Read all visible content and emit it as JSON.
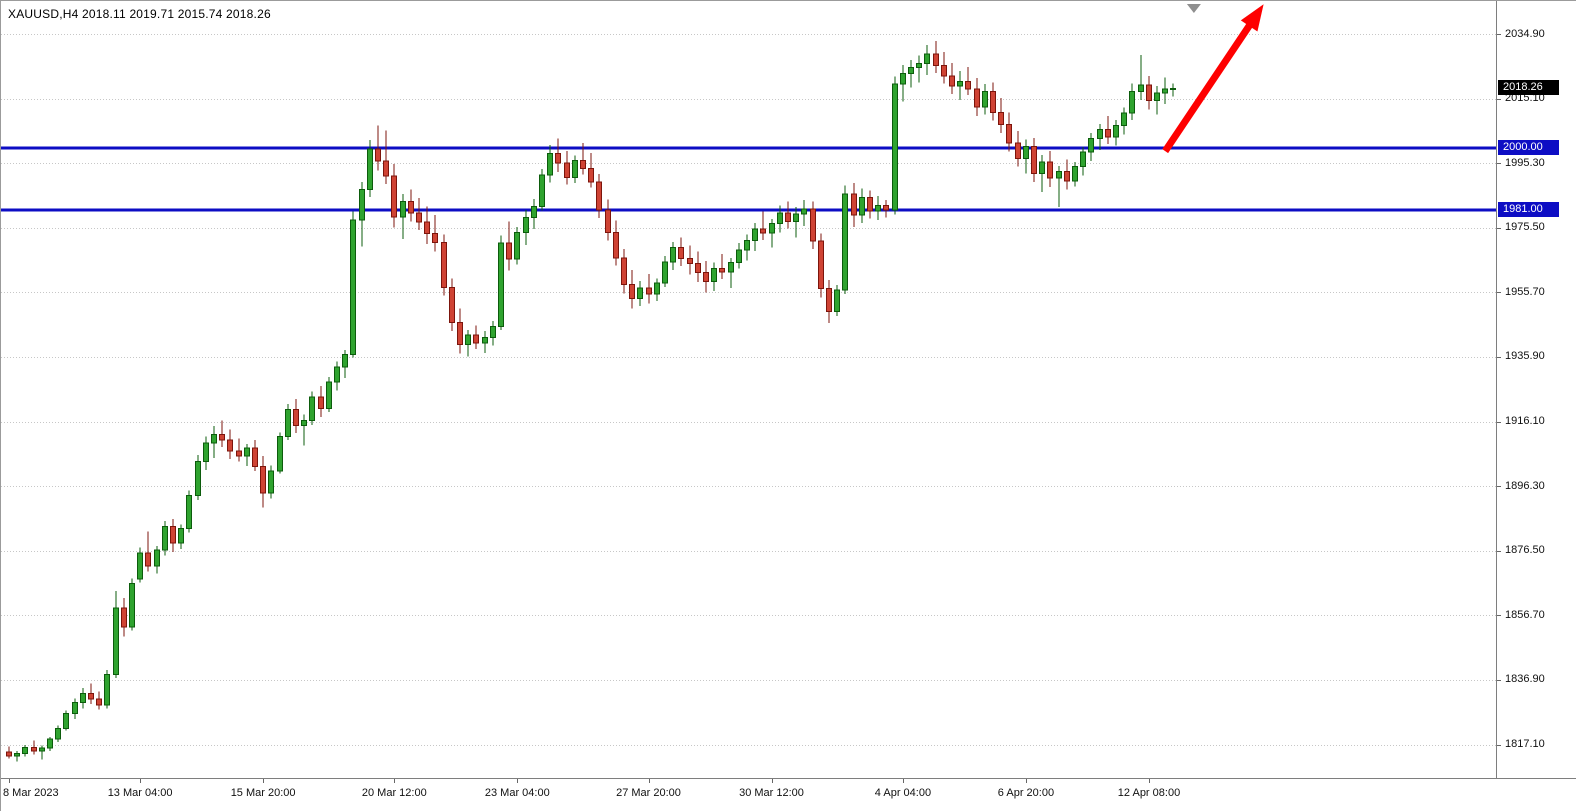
{
  "header": {
    "display": "XAUUSD,H4 2018.11 2019.71 2015.74 2018.26",
    "symbol": "XAUUSD",
    "period": "H4",
    "open": "2018.11",
    "high": "2019.71",
    "low": "2015.74",
    "close": "2018.26"
  },
  "colors": {
    "grid": "#c7c7c7",
    "up": "#2fa32f",
    "up_border": "#0c5c0c",
    "down": "#cf4334",
    "down_border": "#7c150c",
    "level_blue": "#0d0dc4",
    "arrow_red": "#fe0000",
    "bid_bg": "#000000",
    "axis_text": "#101010"
  },
  "chart_data": {
    "type": "candlestick",
    "symbol": "XAUUSD",
    "timeframe": "H4",
    "y_axis": {
      "price_top": 2034.9,
      "price_step": 19.8,
      "ticks": [
        "2034.90",
        "2015.10",
        "1995.30",
        "1975.50",
        "1955.70",
        "1935.90",
        "1916.10",
        "1896.30",
        "1876.50",
        "1856.70",
        "1836.90",
        "1817.10"
      ]
    },
    "x_axis": {
      "ticks": [
        {
          "label": "8 Mar 2023",
          "candle_index": 0
        },
        {
          "label": "13 Mar 04:00",
          "candle_index": 16
        },
        {
          "label": "15 Mar 20:00",
          "candle_index": 31
        },
        {
          "label": "20 Mar 12:00",
          "candle_index": 47
        },
        {
          "label": "23 Mar 04:00",
          "candle_index": 62
        },
        {
          "label": "27 Mar 20:00",
          "candle_index": 78
        },
        {
          "label": "30 Mar 12:00",
          "candle_index": 93
        },
        {
          "label": "4 Apr 04:00",
          "candle_index": 109
        },
        {
          "label": "6 Apr 20:00",
          "candle_index": 124
        },
        {
          "label": "12 Apr 08:00",
          "candle_index": 139
        }
      ]
    },
    "levels": [
      {
        "price": 2000.0,
        "label": "2000.00"
      },
      {
        "price": 1981.0,
        "label": "1981.00"
      }
    ],
    "bid": {
      "price": 2018.26,
      "label": "2018.26"
    },
    "arrow": {
      "from": {
        "candle_index": 141,
        "price": 1999.0
      },
      "to": {
        "candle_index": 153,
        "price": 2044.0
      }
    },
    "shift_marker": {
      "icon": "triangle-down",
      "candle_index": 144.5,
      "color": "#8f8f8f"
    },
    "candles": [
      [
        1814.9,
        1816.5,
        1812.8,
        1813.6
      ],
      [
        1813.6,
        1815.2,
        1811.9,
        1814.4
      ],
      [
        1814.4,
        1817.0,
        1813.5,
        1816.2
      ],
      [
        1816.2,
        1818.4,
        1814.0,
        1815.1
      ],
      [
        1815.1,
        1816.8,
        1812.5,
        1816.0
      ],
      [
        1816.0,
        1819.5,
        1815.2,
        1818.8
      ],
      [
        1818.8,
        1823.0,
        1817.9,
        1822.1
      ],
      [
        1822.1,
        1827.5,
        1821.4,
        1826.6
      ],
      [
        1826.6,
        1831.2,
        1825.0,
        1830.0
      ],
      [
        1830.0,
        1834.5,
        1828.2,
        1832.8
      ],
      [
        1832.8,
        1835.9,
        1829.6,
        1831.0
      ],
      [
        1831.0,
        1833.4,
        1827.8,
        1829.3
      ],
      [
        1829.3,
        1840.0,
        1828.1,
        1838.6
      ],
      [
        1838.6,
        1864.2,
        1837.5,
        1858.9
      ],
      [
        1858.9,
        1862.0,
        1850.3,
        1853.2
      ],
      [
        1853.2,
        1868.0,
        1852.0,
        1866.4
      ],
      [
        1867.9,
        1877.5,
        1866.8,
        1875.9
      ],
      [
        1875.9,
        1882.4,
        1870.1,
        1871.8
      ],
      [
        1871.8,
        1878.0,
        1869.5,
        1876.8
      ],
      [
        1876.8,
        1885.6,
        1875.0,
        1884.0
      ],
      [
        1884.0,
        1886.3,
        1876.2,
        1878.9
      ],
      [
        1878.9,
        1884.5,
        1877.0,
        1883.3
      ],
      [
        1883.3,
        1895.0,
        1882.1,
        1893.4
      ],
      [
        1893.4,
        1905.8,
        1892.0,
        1903.9
      ],
      [
        1903.9,
        1911.5,
        1901.2,
        1909.6
      ],
      [
        1909.6,
        1914.8,
        1905.0,
        1912.2
      ],
      [
        1912.2,
        1916.4,
        1908.3,
        1910.5
      ],
      [
        1910.5,
        1913.7,
        1904.6,
        1907.1
      ],
      [
        1907.1,
        1910.9,
        1903.8,
        1905.6
      ],
      [
        1905.6,
        1909.2,
        1902.5,
        1908.0
      ],
      [
        1908.0,
        1910.4,
        1900.9,
        1902.3
      ],
      [
        1902.3,
        1905.5,
        1889.8,
        1894.2
      ],
      [
        1894.2,
        1902.6,
        1892.5,
        1901.0
      ],
      [
        1901.0,
        1912.8,
        1900.2,
        1911.6
      ],
      [
        1911.6,
        1921.5,
        1910.4,
        1919.8
      ],
      [
        1919.8,
        1923.0,
        1912.6,
        1914.9
      ],
      [
        1914.9,
        1918.2,
        1908.8,
        1916.5
      ],
      [
        1916.5,
        1925.4,
        1915.0,
        1923.7
      ],
      [
        1923.7,
        1927.0,
        1917.5,
        1920.1
      ],
      [
        1920.1,
        1929.8,
        1919.0,
        1928.2
      ],
      [
        1928.2,
        1934.5,
        1925.6,
        1932.9
      ],
      [
        1932.9,
        1938.0,
        1929.4,
        1936.6
      ],
      [
        1936.6,
        1980.5,
        1935.8,
        1977.9
      ],
      [
        1977.9,
        1989.5,
        1969.8,
        1987.2
      ],
      [
        1987.2,
        2002.4,
        1985.0,
        1999.6
      ],
      [
        1999.6,
        2006.8,
        1993.1,
        1996.0
      ],
      [
        1996.0,
        2005.3,
        1988.9,
        1991.4
      ],
      [
        1991.4,
        1995.0,
        1975.6,
        1978.8
      ],
      [
        1978.8,
        1985.9,
        1972.0,
        1983.5
      ],
      [
        1983.5,
        1987.2,
        1977.4,
        1980.0
      ],
      [
        1980.0,
        1984.6,
        1974.9,
        1977.3
      ],
      [
        1977.3,
        1982.0,
        1970.5,
        1973.8
      ],
      [
        1973.8,
        1979.4,
        1968.2,
        1971.0
      ],
      [
        1971.0,
        1973.5,
        1954.8,
        1957.2
      ],
      [
        1957.2,
        1960.0,
        1943.9,
        1946.5
      ],
      [
        1946.5,
        1950.8,
        1936.9,
        1939.8
      ],
      [
        1939.8,
        1944.2,
        1936.0,
        1942.6
      ],
      [
        1942.6,
        1945.5,
        1938.4,
        1940.2
      ],
      [
        1940.2,
        1943.8,
        1937.2,
        1941.9
      ],
      [
        1941.9,
        1947.0,
        1939.5,
        1945.3
      ],
      [
        1945.3,
        1973.2,
        1944.1,
        1970.8
      ],
      [
        1970.8,
        1977.5,
        1962.4,
        1966.0
      ],
      [
        1966.0,
        1975.8,
        1964.2,
        1974.1
      ],
      [
        1974.1,
        1981.0,
        1970.3,
        1978.6
      ],
      [
        1978.6,
        1984.4,
        1975.2,
        1982.0
      ],
      [
        1982.0,
        1993.5,
        1980.8,
        1991.7
      ],
      [
        1991.7,
        2000.9,
        1989.4,
        1998.2
      ],
      [
        1998.2,
        2002.8,
        1992.6,
        1995.4
      ],
      [
        1995.4,
        1999.0,
        1988.7,
        1990.9
      ],
      [
        1990.9,
        1997.6,
        1989.2,
        1996.1
      ],
      [
        1996.1,
        2001.5,
        1991.8,
        1993.7
      ],
      [
        1993.7,
        1998.4,
        1987.9,
        1989.5
      ],
      [
        1989.5,
        1992.0,
        1978.5,
        1980.9
      ],
      [
        1980.9,
        1984.2,
        1971.6,
        1974.0
      ],
      [
        1974.0,
        1977.8,
        1963.9,
        1966.3
      ],
      [
        1966.3,
        1969.0,
        1955.4,
        1958.1
      ],
      [
        1958.1,
        1962.5,
        1950.8,
        1953.9
      ],
      [
        1953.9,
        1959.2,
        1951.6,
        1957.0
      ],
      [
        1957.0,
        1961.4,
        1952.3,
        1955.2
      ],
      [
        1955.2,
        1960.0,
        1953.1,
        1958.6
      ],
      [
        1958.6,
        1966.8,
        1957.4,
        1965.0
      ],
      [
        1965.0,
        1971.2,
        1962.5,
        1969.4
      ],
      [
        1969.4,
        1972.6,
        1963.8,
        1966.1
      ],
      [
        1966.1,
        1970.0,
        1961.2,
        1964.5
      ],
      [
        1964.5,
        1968.2,
        1958.9,
        1961.8
      ],
      [
        1961.8,
        1965.4,
        1955.7,
        1959.0
      ],
      [
        1959.0,
        1964.8,
        1956.2,
        1963.1
      ],
      [
        1963.1,
        1967.5,
        1959.8,
        1962.0
      ],
      [
        1962.0,
        1966.3,
        1957.1,
        1964.9
      ],
      [
        1964.9,
        1970.8,
        1963.0,
        1968.7
      ],
      [
        1968.7,
        1973.4,
        1965.5,
        1971.6
      ],
      [
        1971.6,
        1976.9,
        1968.4,
        1975.2
      ],
      [
        1975.2,
        1980.5,
        1971.8,
        1973.9
      ],
      [
        1973.9,
        1978.2,
        1969.5,
        1976.8
      ],
      [
        1976.8,
        1982.4,
        1974.0,
        1980.1
      ],
      [
        1980.1,
        1983.6,
        1975.3,
        1977.5
      ],
      [
        1977.5,
        1981.9,
        1972.6,
        1979.8
      ],
      [
        1979.8,
        1984.0,
        1976.1,
        1981.2
      ],
      [
        1981.2,
        1983.5,
        1969.0,
        1971.4
      ],
      [
        1971.4,
        1973.8,
        1954.2,
        1956.9
      ],
      [
        1956.9,
        1959.5,
        1946.3,
        1949.8
      ],
      [
        1949.8,
        1958.0,
        1948.5,
        1956.4
      ],
      [
        1956.4,
        1988.5,
        1955.2,
        1985.9
      ],
      [
        1985.9,
        1989.2,
        1975.8,
        1979.4
      ],
      [
        1979.4,
        1987.6,
        1977.0,
        1984.8
      ],
      [
        1984.8,
        1986.9,
        1978.3,
        1980.6
      ],
      [
        1980.6,
        1985.2,
        1977.9,
        1982.4
      ],
      [
        1982.4,
        1984.0,
        1978.6,
        1980.9
      ],
      [
        1980.9,
        2021.8,
        1979.5,
        2019.6
      ],
      [
        2019.6,
        2025.4,
        2014.2,
        2022.8
      ],
      [
        2022.8,
        2027.0,
        2018.5,
        2024.6
      ],
      [
        2024.6,
        2028.3,
        2020.1,
        2025.9
      ],
      [
        2025.9,
        2031.6,
        2022.4,
        2028.7
      ],
      [
        2028.7,
        2032.8,
        2023.0,
        2025.2
      ],
      [
        2025.2,
        2029.4,
        2019.8,
        2022.1
      ],
      [
        2022.1,
        2026.0,
        2016.5,
        2018.9
      ],
      [
        2018.9,
        2023.5,
        2014.7,
        2020.3
      ],
      [
        2020.3,
        2024.8,
        2016.2,
        2018.0
      ],
      [
        2018.0,
        2021.4,
        2009.8,
        2012.5
      ],
      [
        2012.5,
        2019.6,
        2010.3,
        2017.2
      ],
      [
        2017.2,
        2020.0,
        2008.4,
        2010.9
      ],
      [
        2010.9,
        2015.3,
        2004.6,
        2007.1
      ],
      [
        2007.1,
        2010.8,
        1998.9,
        2001.5
      ],
      [
        2001.5,
        2005.2,
        1994.3,
        1996.8
      ],
      [
        1996.8,
        2002.6,
        1992.1,
        2000.4
      ],
      [
        2000.4,
        2003.0,
        1989.5,
        1992.2
      ],
      [
        1992.2,
        1997.8,
        1986.4,
        1995.6
      ],
      [
        1995.6,
        1999.1,
        1988.0,
        1990.7
      ],
      [
        1990.7,
        1994.5,
        1981.9,
        1992.8
      ],
      [
        1992.8,
        1996.4,
        1987.2,
        1989.9
      ],
      [
        1989.9,
        1995.7,
        1988.1,
        1994.3
      ],
      [
        1994.3,
        2000.2,
        1991.6,
        1998.8
      ],
      [
        1998.8,
        2004.5,
        1996.0,
        2002.9
      ],
      [
        2002.9,
        2007.3,
        1999.4,
        2005.6
      ],
      [
        2005.6,
        2009.8,
        2001.2,
        2003.4
      ],
      [
        2003.4,
        2008.6,
        2000.8,
        2006.9
      ],
      [
        2006.9,
        2012.4,
        2004.1,
        2010.7
      ],
      [
        2010.7,
        2019.8,
        2008.5,
        2017.3
      ],
      [
        2017.3,
        2028.4,
        2014.6,
        2019.2
      ],
      [
        2019.2,
        2022.0,
        2011.8,
        2014.5
      ],
      [
        2014.5,
        2018.9,
        2010.2,
        2016.8
      ],
      [
        2016.8,
        2021.5,
        2013.4,
        2018.11
      ],
      [
        2018.11,
        2019.71,
        2015.74,
        2018.26
      ]
    ]
  }
}
